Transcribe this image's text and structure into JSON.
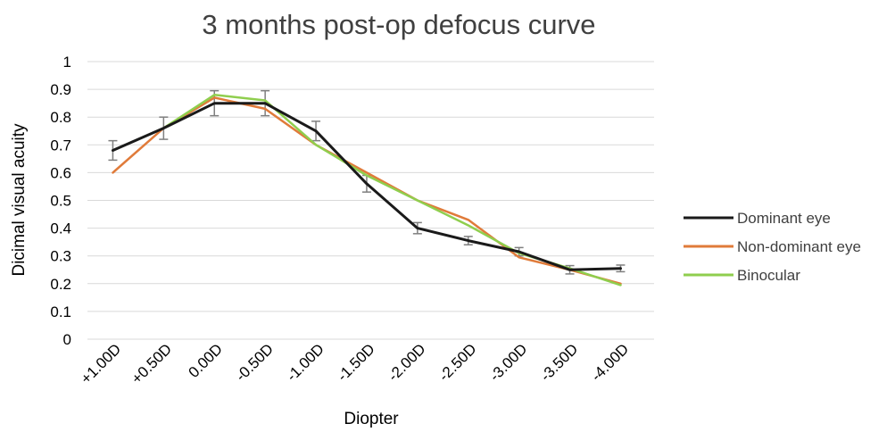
{
  "chart_data": {
    "type": "line",
    "title": "3 months post-op defocus curve",
    "xlabel": "Diopter",
    "ylabel": "Dicimal visual acuity",
    "ylim": [
      0,
      1
    ],
    "y_ticks": [
      "0",
      "0.1",
      "0.2",
      "0.3",
      "0.4",
      "0.5",
      "0.6",
      "0.7",
      "0.8",
      "0.9",
      "1"
    ],
    "categories": [
      "+1.00D",
      "+0.50D",
      "0.00D",
      "-0.50D",
      "-1.00D",
      "-1.50D",
      "-2.00D",
      "-2.50D",
      "-3.00D",
      "-3.50D",
      "-4.00D"
    ],
    "grid": true,
    "legend_position": "right",
    "series": [
      {
        "name": "Dominant eye",
        "color": "#1a1a1a",
        "values": [
          0.68,
          0.76,
          0.85,
          0.85,
          0.75,
          0.56,
          0.4,
          0.355,
          0.315,
          0.25,
          0.255
        ],
        "error": [
          0.035,
          0.04,
          0.045,
          0.045,
          0.035,
          0.03,
          0.02,
          0.015,
          0.015,
          0.015,
          0.012
        ]
      },
      {
        "name": "Non-dominant eye",
        "color": "#e07b3a",
        "values": [
          0.6,
          0.76,
          0.87,
          0.83,
          0.7,
          0.6,
          0.5,
          0.43,
          0.295,
          0.25,
          0.2
        ]
      },
      {
        "name": "Binocular",
        "color": "#8fce4e",
        "values": [
          0.68,
          0.76,
          0.88,
          0.86,
          0.7,
          0.59,
          0.5,
          0.41,
          0.31,
          0.255,
          0.195
        ]
      }
    ]
  }
}
